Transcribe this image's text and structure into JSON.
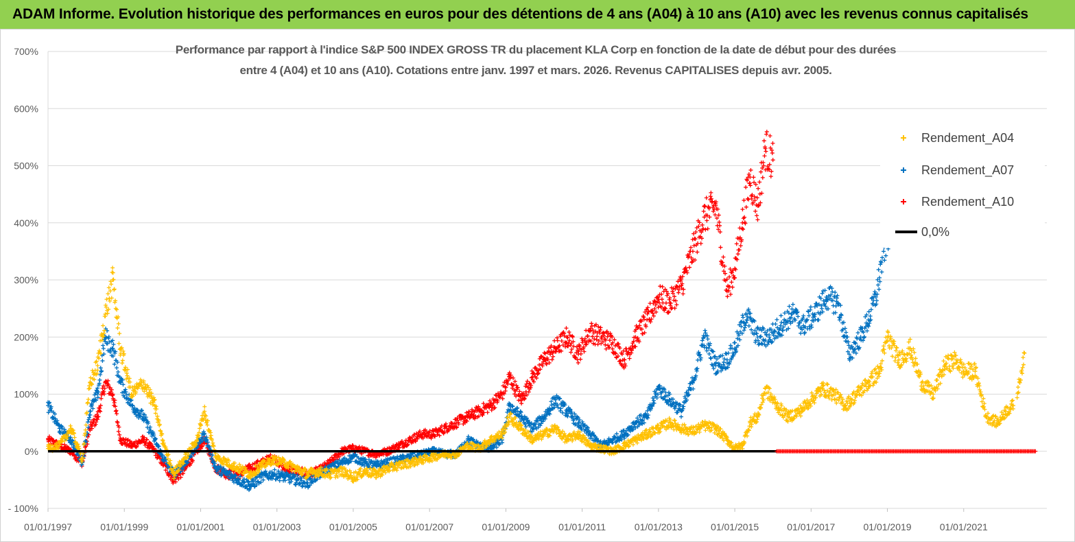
{
  "banner": {
    "title": "ADAM Informe. Evolution historique des performances en euros pour des détentions de 4 ans (A04) à 10 ans (A10) avec les revenus connus capitalisés",
    "background": "#92d050"
  },
  "chart_data": {
    "type": "scatter",
    "title_line1": "Performance par rapport à l'indice S&P 500 INDEX GROSS TR  du placement KLA Corp en fonction de la date de début pour des durées",
    "title_line2": "entre 4 (A04) et 10 ans (A10). Cotations entre janv. 1997 et mars. 2026. Revenus CAPITALISES depuis avr. 2005.",
    "x_range": [
      "01/01/1997",
      "01/01/2023"
    ],
    "x_ticks": [
      "01/01/1997",
      "01/01/1999",
      "01/01/2001",
      "01/01/2003",
      "01/01/2005",
      "01/01/2007",
      "01/01/2009",
      "01/01/2011",
      "01/01/2013",
      "01/01/2015",
      "01/01/2017",
      "01/01/2019",
      "01/01/2021"
    ],
    "y_ticks": [
      "- 100%",
      "0%",
      "100%",
      "200%",
      "300%",
      "400%",
      "500%",
      "600%",
      "700%"
    ],
    "y_range_percent": [
      -100,
      700
    ],
    "grid": "horizontal",
    "legend_position": "top-right",
    "series": [
      {
        "name": "Rendement_A04",
        "color": "#ffc000",
        "marker": "plus",
        "x": [
          1997.0,
          1997.3,
          1997.6,
          1997.9,
          1998.1,
          1998.3,
          1998.5,
          1998.7,
          1998.9,
          1999.2,
          1999.5,
          1999.8,
          2000.0,
          2000.3,
          2000.6,
          2000.9,
          2001.1,
          2001.4,
          2001.7,
          2002.0,
          2002.3,
          2002.6,
          2002.9,
          2003.2,
          2003.5,
          2003.8,
          2004.1,
          2004.4,
          2004.7,
          2005.0,
          2005.3,
          2005.6,
          2005.9,
          2006.2,
          2006.5,
          2006.8,
          2007.1,
          2007.4,
          2007.7,
          2008.0,
          2008.3,
          2008.6,
          2008.9,
          2009.1,
          2009.4,
          2009.7,
          2010.0,
          2010.3,
          2010.6,
          2010.9,
          2011.2,
          2011.5,
          2011.8,
          2012.1,
          2012.4,
          2012.7,
          2013.0,
          2013.3,
          2013.6,
          2013.9,
          2014.2,
          2014.5,
          2014.8,
          2015.0,
          2015.2,
          2015.4,
          2015.6,
          2015.8,
          2016.1,
          2016.4,
          2016.7,
          2017.0,
          2017.3,
          2017.6,
          2017.9,
          2018.2,
          2018.5,
          2018.8,
          2019.0,
          2019.3,
          2019.6,
          2019.9,
          2020.2,
          2020.5,
          2020.8,
          2021.0,
          2021.3,
          2021.6,
          2021.9,
          2022.1,
          2022.3
        ],
        "y": [
          5,
          10,
          40,
          -15,
          120,
          150,
          240,
          300,
          180,
          100,
          120,
          80,
          20,
          -40,
          -10,
          20,
          70,
          -10,
          -20,
          -30,
          -40,
          -25,
          -15,
          -20,
          -30,
          -40,
          -35,
          -40,
          -35,
          -45,
          -35,
          -40,
          -30,
          -25,
          -20,
          -15,
          -10,
          -5,
          -5,
          10,
          5,
          20,
          30,
          60,
          40,
          20,
          30,
          40,
          20,
          30,
          10,
          5,
          0,
          10,
          20,
          30,
          40,
          50,
          40,
          35,
          45,
          40,
          20,
          5,
          10,
          50,
          60,
          110,
          80,
          60,
          70,
          90,
          110,
          100,
          80,
          100,
          120,
          140,
          200,
          160,
          180,
          120,
          100,
          150,
          160,
          140,
          140,
          60,
          50,
          70,
          80
        ],
        "x_end": [
          2022.4,
          2022.6
        ],
        "y_end": [
          100,
          170
        ]
      },
      {
        "name": "Rendement_A07",
        "color": "#0070c0",
        "marker": "plus",
        "x": [
          1997.0,
          1997.3,
          1997.6,
          1997.9,
          1998.1,
          1998.3,
          1998.5,
          1998.7,
          1998.9,
          1999.2,
          1999.5,
          1999.8,
          2000.0,
          2000.3,
          2000.6,
          2000.9,
          2001.1,
          2001.4,
          2001.7,
          2002.0,
          2002.3,
          2002.6,
          2002.9,
          2003.2,
          2003.5,
          2003.8,
          2004.1,
          2004.4,
          2004.7,
          2005.0,
          2005.3,
          2005.6,
          2005.9,
          2006.2,
          2006.5,
          2006.8,
          2007.1,
          2007.4,
          2007.7,
          2008.0,
          2008.3,
          2008.6,
          2008.9,
          2009.1,
          2009.4,
          2009.7,
          2010.0,
          2010.3,
          2010.6,
          2010.9,
          2011.2,
          2011.5,
          2011.8,
          2012.1,
          2012.4,
          2012.7,
          2013.0,
          2013.3,
          2013.6,
          2013.9,
          2014.2,
          2014.5,
          2014.8,
          2015.0,
          2015.3,
          2015.6,
          2015.9,
          2016.2,
          2016.5,
          2016.8,
          2017.1,
          2017.4,
          2017.7,
          2018.0,
          2018.3,
          2018.5,
          2018.7,
          2018.9,
          2019.1
        ],
        "y": [
          80,
          40,
          20,
          -20,
          70,
          100,
          200,
          180,
          120,
          80,
          60,
          20,
          -10,
          -40,
          -20,
          10,
          30,
          -30,
          -40,
          -50,
          -60,
          -45,
          -40,
          -45,
          -50,
          -55,
          -40,
          -30,
          -20,
          -10,
          -20,
          -25,
          -20,
          -15,
          -10,
          -5,
          0,
          -5,
          -5,
          20,
          10,
          5,
          20,
          80,
          60,
          40,
          60,
          90,
          70,
          50,
          30,
          10,
          20,
          30,
          50,
          60,
          110,
          90,
          70,
          120,
          200,
          150,
          160,
          180,
          240,
          200,
          200,
          220,
          240,
          220,
          240,
          270,
          260,
          170,
          200,
          230,
          270,
          350,
          400
        ],
        "x_end": [],
        "y_end": []
      },
      {
        "name": "Rendement_A10",
        "color": "#ff0000",
        "marker": "plus",
        "x": [
          1997.0,
          1997.3,
          1997.6,
          1997.9,
          1998.1,
          1998.3,
          1998.5,
          1998.7,
          1998.9,
          1999.2,
          1999.5,
          1999.8,
          2000.0,
          2000.3,
          2000.6,
          2000.9,
          2001.1,
          2001.4,
          2001.7,
          2002.0,
          2002.3,
          2002.6,
          2002.9,
          2003.2,
          2003.5,
          2003.8,
          2004.1,
          2004.4,
          2004.7,
          2005.0,
          2005.3,
          2005.6,
          2005.9,
          2006.2,
          2006.5,
          2006.8,
          2007.1,
          2007.4,
          2007.7,
          2008.0,
          2008.3,
          2008.6,
          2008.9,
          2009.1,
          2009.4,
          2009.7,
          2010.0,
          2010.3,
          2010.6,
          2010.9,
          2011.2,
          2011.5,
          2011.8,
          2012.1,
          2012.4,
          2012.7,
          2013.0,
          2013.3,
          2013.6,
          2013.9,
          2014.2,
          2014.5,
          2014.8,
          2015.0,
          2015.2,
          2015.4,
          2015.6,
          2015.8,
          2016.0
        ],
        "y": [
          20,
          10,
          0,
          -20,
          40,
          60,
          120,
          100,
          20,
          10,
          20,
          0,
          -20,
          -50,
          -30,
          0,
          20,
          -30,
          -40,
          -40,
          -30,
          -20,
          -10,
          -30,
          -35,
          -40,
          -35,
          -20,
          0,
          5,
          0,
          -5,
          0,
          10,
          20,
          30,
          30,
          40,
          50,
          60,
          70,
          80,
          100,
          130,
          90,
          130,
          160,
          180,
          200,
          170,
          210,
          200,
          190,
          160,
          200,
          230,
          270,
          260,
          290,
          350,
          410,
          430,
          280,
          320,
          400,
          480,
          430,
          530,
          510
        ],
        "x_end": [
          2016.1,
          2022.9
        ],
        "y_end": [
          0,
          0
        ]
      },
      {
        "name": "0,0%",
        "color": "#000000",
        "marker": "line",
        "x": [
          1997.0,
          2016.1
        ],
        "y": [
          0,
          0
        ]
      }
    ],
    "partial_series_note_visible": false
  }
}
